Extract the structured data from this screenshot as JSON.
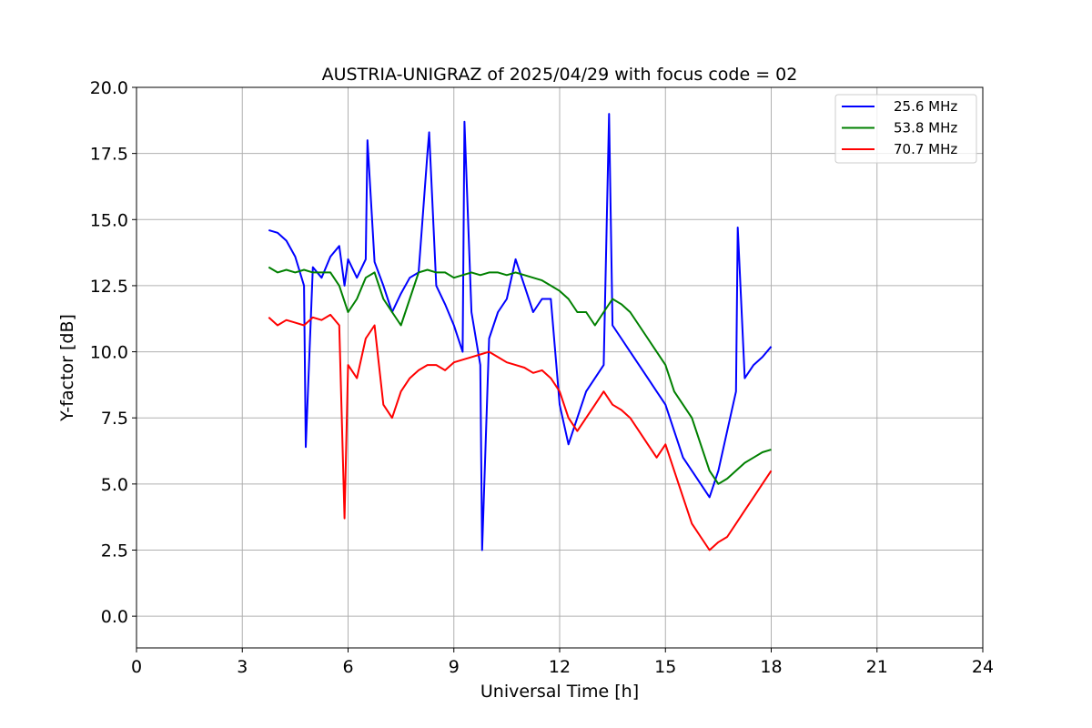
{
  "chart_data": {
    "type": "line",
    "title": "AUSTRIA-UNIGRAZ of 2025/04/29 with focus code = 02",
    "xlabel": "Universal Time [h]",
    "ylabel": "Y-factor [dB]",
    "xlim": [
      0,
      24
    ],
    "ylim": [
      -1.2,
      20
    ],
    "xticks": [
      0,
      3,
      6,
      9,
      12,
      15,
      18,
      21,
      24
    ],
    "xtick_labels": [
      "0",
      "3",
      "6",
      "9",
      "12",
      "15",
      "18",
      "21",
      "24"
    ],
    "yticks": [
      0,
      2.5,
      5,
      7.5,
      10,
      12.5,
      15,
      17.5,
      20
    ],
    "ytick_labels": [
      "0.0",
      "2.5",
      "5.0",
      "7.5",
      "10.0",
      "12.5",
      "15.0",
      "17.5",
      "20.0"
    ],
    "grid": true,
    "legend_position": "top-right",
    "series": [
      {
        "name": "25.6 MHz",
        "color": "#0000ff",
        "x": [
          3.75,
          4.0,
          4.25,
          4.5,
          4.75,
          4.8,
          5.0,
          5.25,
          5.5,
          5.75,
          5.9,
          6.0,
          6.25,
          6.5,
          6.55,
          6.75,
          7.0,
          7.25,
          7.5,
          7.75,
          8.0,
          8.25,
          8.3,
          8.5,
          8.75,
          9.0,
          9.25,
          9.3,
          9.5,
          9.75,
          9.8,
          10.0,
          10.25,
          10.5,
          10.75,
          11.0,
          11.25,
          11.5,
          11.75,
          12.0,
          12.25,
          12.5,
          12.75,
          13.0,
          13.25,
          13.4,
          13.5,
          13.75,
          14.0,
          14.25,
          14.5,
          14.75,
          15.0,
          15.25,
          15.5,
          15.75,
          16.0,
          16.25,
          16.5,
          16.75,
          17.0,
          17.05,
          17.25,
          17.5,
          17.75,
          18.0
        ],
        "y": [
          14.6,
          14.5,
          14.2,
          13.6,
          12.5,
          6.4,
          13.2,
          12.8,
          13.6,
          14.0,
          12.5,
          13.5,
          12.8,
          13.5,
          18.0,
          13.4,
          12.5,
          11.5,
          12.2,
          12.8,
          13.0,
          17.5,
          18.3,
          12.5,
          11.8,
          11.0,
          10.0,
          18.7,
          11.5,
          9.5,
          2.5,
          10.5,
          11.5,
          12.0,
          13.5,
          12.5,
          11.5,
          12.0,
          12.0,
          8.0,
          6.5,
          7.5,
          8.5,
          9.0,
          9.5,
          19.0,
          11.0,
          10.5,
          10.0,
          9.5,
          9.0,
          8.5,
          8.0,
          7.0,
          6.0,
          5.5,
          5.0,
          4.5,
          5.5,
          7.0,
          8.5,
          14.7,
          9.0,
          9.5,
          9.8,
          10.2
        ]
      },
      {
        "name": "53.8 MHz",
        "color": "#008000",
        "x": [
          3.75,
          4.0,
          4.25,
          4.5,
          4.75,
          5.0,
          5.25,
          5.5,
          5.75,
          6.0,
          6.25,
          6.5,
          6.75,
          7.0,
          7.25,
          7.5,
          7.75,
          8.0,
          8.25,
          8.5,
          8.75,
          9.0,
          9.25,
          9.5,
          9.75,
          10.0,
          10.25,
          10.5,
          10.75,
          11.0,
          11.25,
          11.5,
          11.75,
          12.0,
          12.25,
          12.5,
          12.75,
          13.0,
          13.25,
          13.5,
          13.75,
          14.0,
          14.25,
          14.5,
          14.75,
          15.0,
          15.25,
          15.5,
          15.75,
          16.0,
          16.25,
          16.5,
          16.75,
          17.0,
          17.25,
          17.5,
          17.75,
          18.0
        ],
        "y": [
          13.2,
          13.0,
          13.1,
          13.0,
          13.1,
          13.0,
          13.0,
          13.0,
          12.5,
          11.5,
          12.0,
          12.8,
          13.0,
          12.0,
          11.5,
          11.0,
          12.0,
          13.0,
          13.1,
          13.0,
          13.0,
          12.8,
          12.9,
          13.0,
          12.9,
          13.0,
          13.0,
          12.9,
          13.0,
          12.9,
          12.8,
          12.7,
          12.5,
          12.3,
          12.0,
          11.5,
          11.5,
          11.0,
          11.5,
          12.0,
          11.8,
          11.5,
          11.0,
          10.5,
          10.0,
          9.5,
          8.5,
          8.0,
          7.5,
          6.5,
          5.5,
          5.0,
          5.2,
          5.5,
          5.8,
          6.0,
          6.2,
          6.3
        ]
      },
      {
        "name": "70.7 MHz",
        "color": "#ff0000",
        "x": [
          3.75,
          4.0,
          4.25,
          4.5,
          4.75,
          5.0,
          5.25,
          5.5,
          5.75,
          5.9,
          6.0,
          6.25,
          6.5,
          6.75,
          7.0,
          7.25,
          7.5,
          7.75,
          8.0,
          8.25,
          8.5,
          8.75,
          9.0,
          9.25,
          9.5,
          9.75,
          10.0,
          10.25,
          10.5,
          10.75,
          11.0,
          11.25,
          11.5,
          11.75,
          12.0,
          12.25,
          12.5,
          12.75,
          13.0,
          13.25,
          13.5,
          13.75,
          14.0,
          14.25,
          14.5,
          14.75,
          15.0,
          15.25,
          15.5,
          15.75,
          16.0,
          16.25,
          16.5,
          16.75,
          17.0,
          17.25,
          17.5,
          17.75,
          18.0
        ],
        "y": [
          11.3,
          11.0,
          11.2,
          11.1,
          11.0,
          11.3,
          11.2,
          11.4,
          11.0,
          3.7,
          9.5,
          9.0,
          10.5,
          11.0,
          8.0,
          7.5,
          8.5,
          9.0,
          9.3,
          9.5,
          9.5,
          9.3,
          9.6,
          9.7,
          9.8,
          9.9,
          10.0,
          9.8,
          9.6,
          9.5,
          9.4,
          9.2,
          9.3,
          9.0,
          8.5,
          7.5,
          7.0,
          7.5,
          8.0,
          8.5,
          8.0,
          7.8,
          7.5,
          7.0,
          6.5,
          6.0,
          6.5,
          5.5,
          4.5,
          3.5,
          3.0,
          2.5,
          2.8,
          3.0,
          3.5,
          4.0,
          4.5,
          5.0,
          5.5
        ]
      }
    ]
  }
}
